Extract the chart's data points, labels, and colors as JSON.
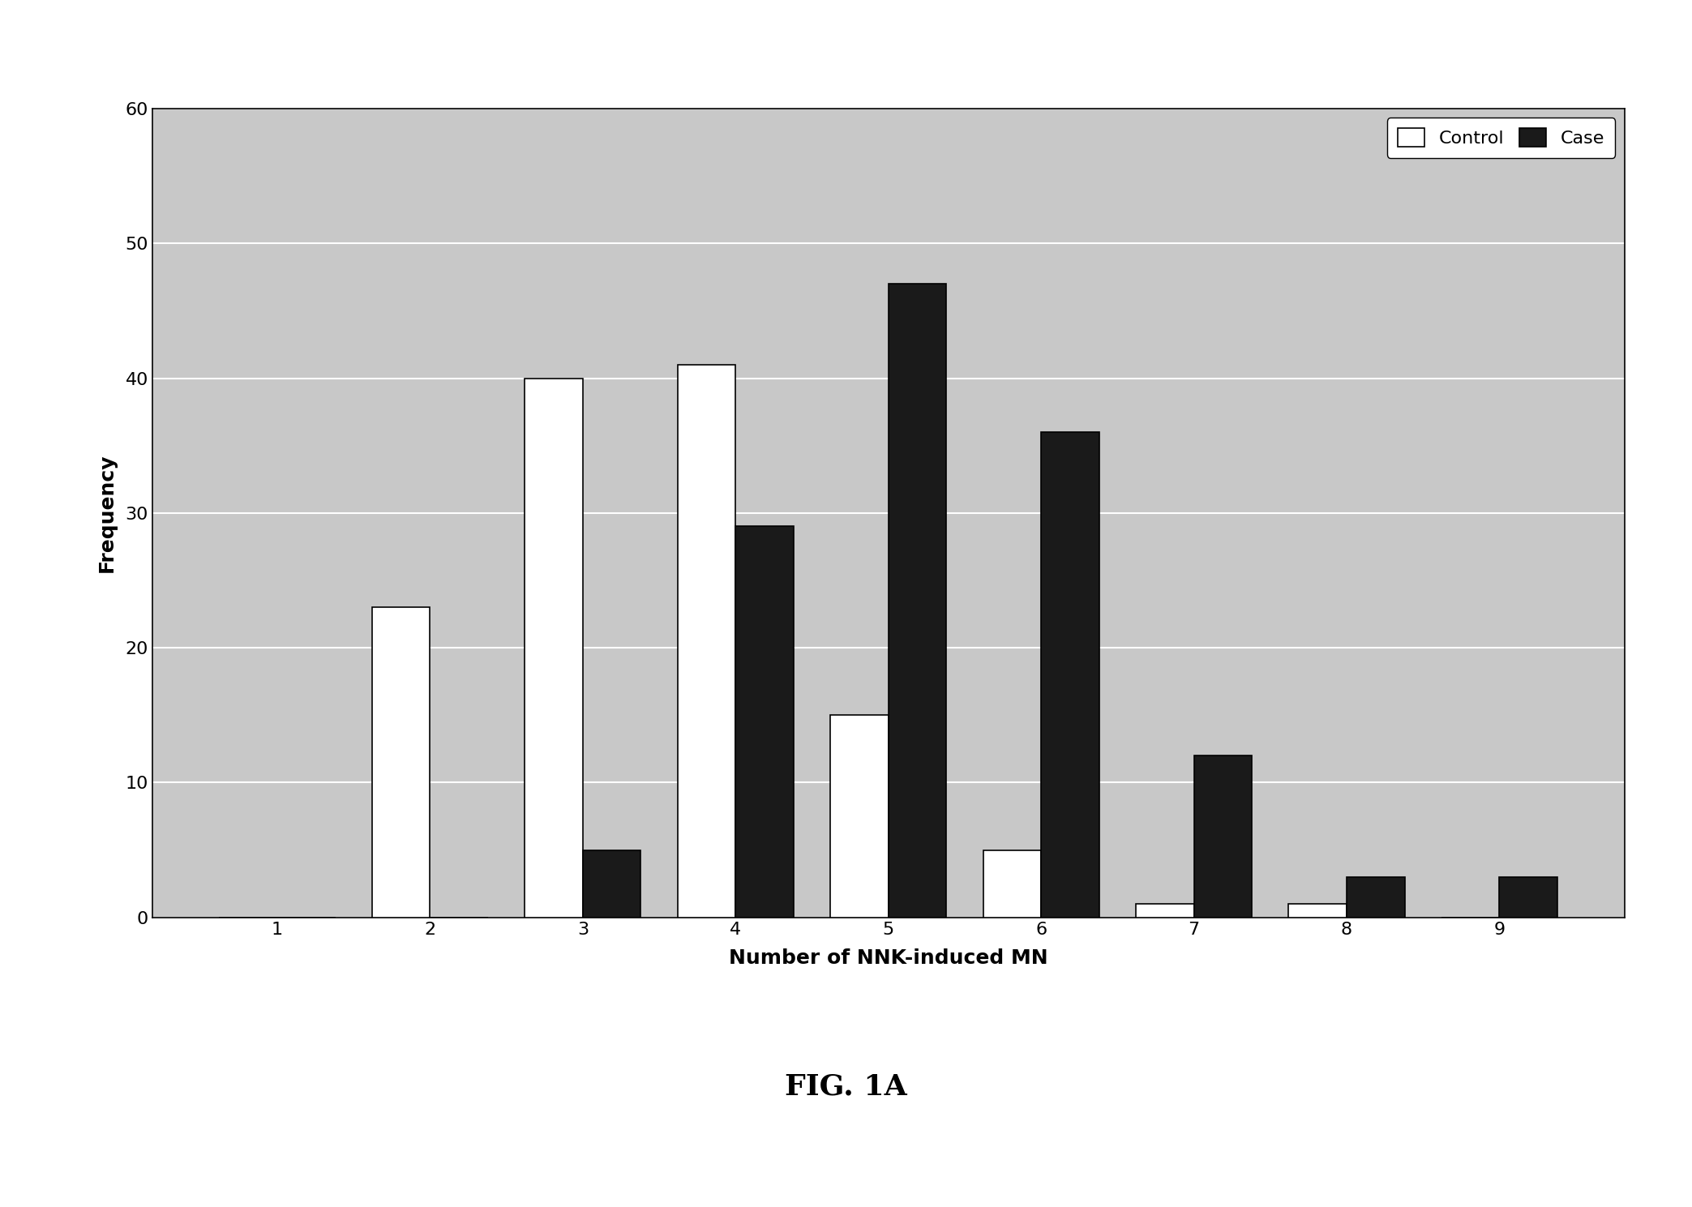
{
  "categories": [
    1,
    2,
    3,
    4,
    5,
    6,
    7,
    8,
    9
  ],
  "control_values": [
    0,
    23,
    40,
    41,
    15,
    5,
    1,
    1,
    0
  ],
  "case_values": [
    0,
    0,
    5,
    29,
    47,
    36,
    12,
    3,
    3
  ],
  "control_color": "#ffffff",
  "case_color": "#1a1a1a",
  "control_edge_color": "#000000",
  "case_edge_color": "#000000",
  "ylabel": "Frequency",
  "xlabel": "Number of NNK-induced MN",
  "ylim": [
    0,
    60
  ],
  "yticks": [
    0,
    10,
    20,
    30,
    40,
    50,
    60
  ],
  "legend_labels": [
    "Control",
    "Case"
  ],
  "fig_caption": "FIG. 1A",
  "plot_bg_color": "#c8c8c8",
  "fig_bg_color": "#ffffff",
  "bar_width": 0.38,
  "axis_label_fontsize": 18,
  "tick_fontsize": 16,
  "legend_fontsize": 16,
  "caption_fontsize": 26,
  "grid_color": "#ffffff",
  "grid_linewidth": 1.5
}
